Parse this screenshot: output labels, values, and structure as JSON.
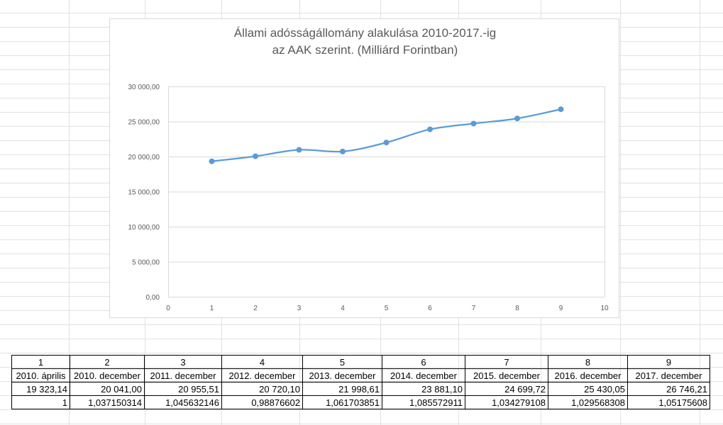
{
  "chart_data": {
    "type": "line",
    "title_lines": [
      "Állami adósságállomány alakulása 2010-2017.-ig",
      "az AAK szerint. (Milliárd Forintban)"
    ],
    "x": [
      1,
      2,
      3,
      4,
      5,
      6,
      7,
      8,
      9
    ],
    "series": [
      {
        "values": [
          19323.14,
          20041.0,
          20955.51,
          20720.1,
          21998.61,
          23881.1,
          24699.72,
          25430.05,
          26746.21
        ]
      }
    ],
    "xlim": [
      0,
      10
    ],
    "ylim": [
      0,
      30000
    ],
    "x_ticks": [
      "0",
      "1",
      "2",
      "3",
      "4",
      "5",
      "6",
      "7",
      "8",
      "9",
      "10"
    ],
    "y_ticks": [
      "0,00",
      "5 000,00",
      "10 000,00",
      "15 000,00",
      "20 000,00",
      "25 000,00",
      "30 000,00"
    ],
    "smoothed": true,
    "markers": true,
    "grid": true,
    "line_color": "#5b9bd5"
  },
  "table": {
    "header": [
      "1",
      "2",
      "3",
      "4",
      "5",
      "6",
      "7",
      "8",
      "9"
    ],
    "dates": [
      "2010. április",
      "2010. december",
      "2011. december",
      "2012. december",
      "2013. december",
      "2014. december",
      "2015. december",
      "2016. december",
      "2017. december"
    ],
    "values": [
      "19 323,14",
      "20 041,00",
      "20 955,51",
      "20 720,10",
      "21 998,61",
      "23 881,10",
      "24 699,72",
      "25 430,05",
      "26 746,21"
    ],
    "ratios": [
      "1",
      "1,037150314",
      "1,045632146",
      "0,98876602",
      "1,061703851",
      "1,085572911",
      "1,034279108",
      "1,029568308",
      "1,05175608"
    ]
  }
}
